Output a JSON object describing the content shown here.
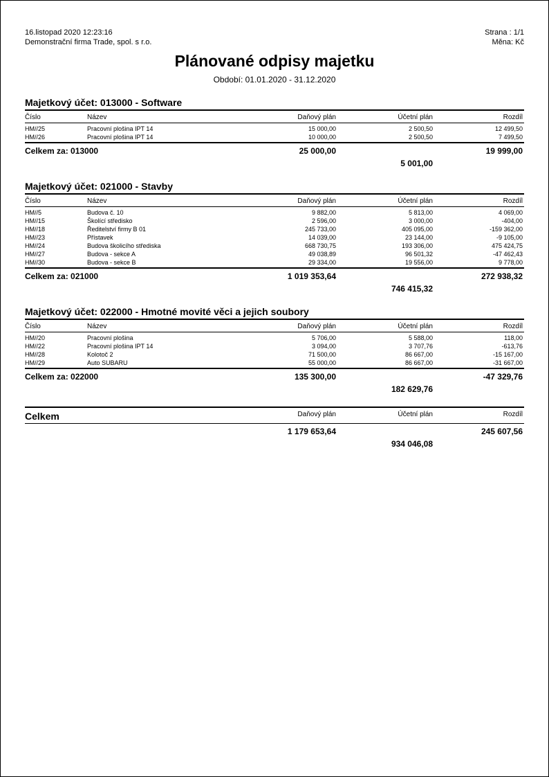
{
  "header": {
    "datetime": "16.listopad 2020 12:23:16",
    "page_label": "Strana : 1/1",
    "company": "Demonstrační firma Trade, spol. s r.o.",
    "currency": "Měna: Kč"
  },
  "title": "Plánované odpisy majetku",
  "period": "Období: 01.01.2020 - 31.12.2020",
  "columns": {
    "number": "Číslo",
    "name": "Název",
    "tax_plan": "Daňový plán",
    "acc_plan": "Účetní plán",
    "diff": "Rozdíl"
  },
  "sections": [
    {
      "title": "Majetkový účet: 013000 - Software",
      "rows": [
        {
          "num": "HM//25",
          "name": "Pracovní plošina IPT 14",
          "tax": "15 000,00",
          "acc": "2 500,50",
          "diff": "12 499,50"
        },
        {
          "num": "HM//26",
          "name": "Pracovní plošina IPT 14",
          "tax": "10 000,00",
          "acc": "2 500,50",
          "diff": "7 499,50"
        }
      ],
      "subtotal_label": "Celkem za: 013000",
      "subtotal_tax": "25 000,00",
      "subtotal_acc": "5 001,00",
      "subtotal_diff": "19 999,00"
    },
    {
      "title": "Majetkový účet: 021000 - Stavby",
      "rows": [
        {
          "num": "HM//5",
          "name": "Budova č. 10",
          "tax": "9 882,00",
          "acc": "5 813,00",
          "diff": "4 069,00"
        },
        {
          "num": "HM//15",
          "name": "Školící středisko",
          "tax": "2 596,00",
          "acc": "3 000,00",
          "diff": "-404,00"
        },
        {
          "num": "HM//18",
          "name": "Ředitelství firmy B 01",
          "tax": "245 733,00",
          "acc": "405 095,00",
          "diff": "-159 362,00"
        },
        {
          "num": "HM//23",
          "name": "Přístavek",
          "tax": "14 039,00",
          "acc": "23 144,00",
          "diff": "-9 105,00"
        },
        {
          "num": "HM//24",
          "name": "Budova školicího střediska",
          "tax": "668 730,75",
          "acc": "193 306,00",
          "diff": "475 424,75"
        },
        {
          "num": "HM//27",
          "name": "Budova - sekce A",
          "tax": "49 038,89",
          "acc": "96 501,32",
          "diff": "-47 462,43"
        },
        {
          "num": "HM//30",
          "name": "Budova - sekce B",
          "tax": "29 334,00",
          "acc": "19 556,00",
          "diff": "9 778,00"
        }
      ],
      "subtotal_label": "Celkem za: 021000",
      "subtotal_tax": "1 019 353,64",
      "subtotal_acc": "746 415,32",
      "subtotal_diff": "272 938,32"
    },
    {
      "title": "Majetkový účet: 022000 - Hmotné movité věci a jejich soubory",
      "rows": [
        {
          "num": "HM//20",
          "name": "Pracovní plošina",
          "tax": "5 706,00",
          "acc": "5 588,00",
          "diff": "118,00"
        },
        {
          "num": "HM//22",
          "name": "Pracovní plošina IPT 14",
          "tax": "3 094,00",
          "acc": "3 707,76",
          "diff": "-613,76"
        },
        {
          "num": "HM//28",
          "name": "Kolotoč 2",
          "tax": "71 500,00",
          "acc": "86 667,00",
          "diff": "-15 167,00"
        },
        {
          "num": "HM//29",
          "name": "Auto SUBARU",
          "tax": "55 000,00",
          "acc": "86 667,00",
          "diff": "-31 667,00"
        }
      ],
      "subtotal_label": "Celkem za: 022000",
      "subtotal_tax": "135 300,00",
      "subtotal_acc": "182 629,76",
      "subtotal_diff": "-47 329,76"
    }
  ],
  "grand": {
    "label": "Celkem",
    "tax": "1 179 653,64",
    "acc": "934 046,08",
    "diff": "245 607,56"
  }
}
